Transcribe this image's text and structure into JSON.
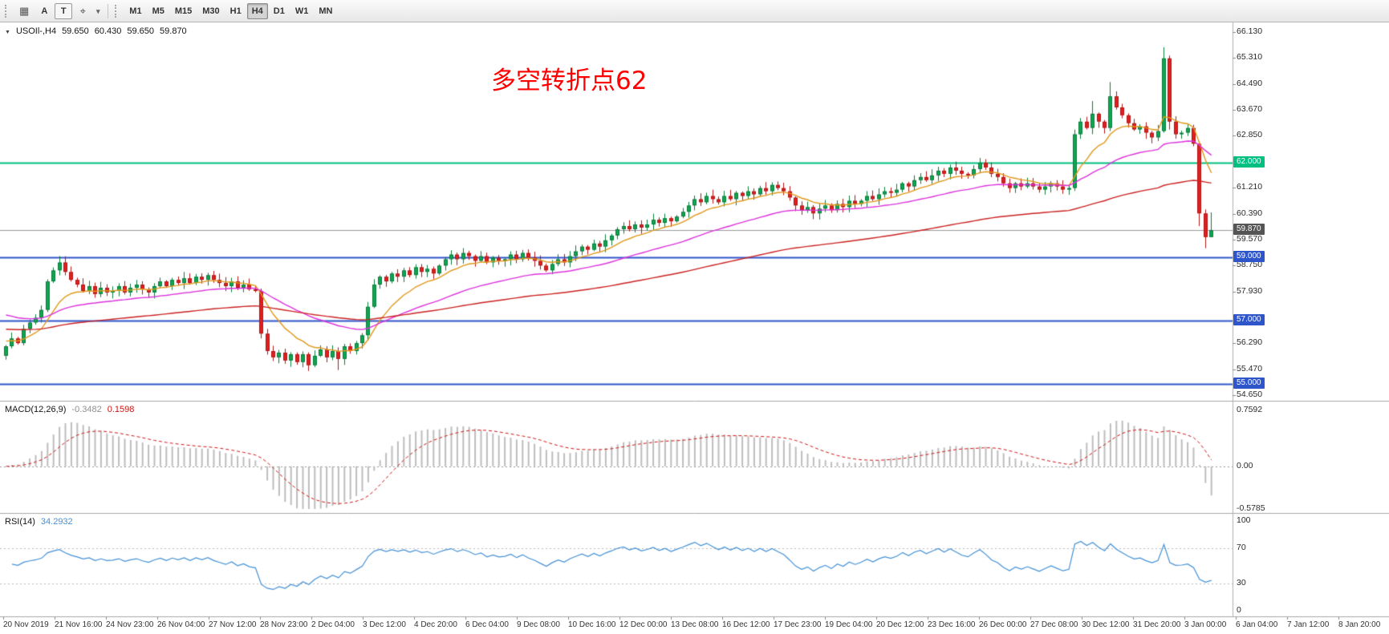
{
  "toolbar": {
    "grid_glyph": "▦",
    "caret_glyph": "▾",
    "tools": [
      {
        "name": "annotation-tool",
        "label": "A"
      },
      {
        "name": "text-tool",
        "label": "T"
      },
      {
        "name": "crosshair-tool",
        "glyph": "⌖"
      }
    ],
    "timeframes": [
      {
        "label": "M1"
      },
      {
        "label": "M5"
      },
      {
        "label": "M15"
      },
      {
        "label": "M30"
      },
      {
        "label": "H1"
      },
      {
        "label": "H4",
        "active": true
      },
      {
        "label": "D1"
      },
      {
        "label": "W1"
      },
      {
        "label": "MN"
      }
    ]
  },
  "chart": {
    "marker_glyph": "▼",
    "symbol_label": "USOIl-,H4",
    "ohlc_display": {
      "open": "59.650",
      "high": "60.430",
      "low": "59.650",
      "close": "59.870"
    },
    "annotation": {
      "text": "多空转折点62",
      "color": "#ff0000"
    },
    "colors": {
      "bull": "#0fa651",
      "bull_border": "#0a7c3c",
      "bear": "#e02020",
      "bear_border": "#b21616",
      "current_price_line": "#9a9a9a"
    }
  },
  "chart_data": {
    "type": "candlestick",
    "symbol": "USOIL",
    "timeframe": "H4",
    "title": "USOIl-,H4",
    "ylim": [
      54.48,
      66.41
    ],
    "price_ticks": [
      66.13,
      65.31,
      64.49,
      63.67,
      62.85,
      61.21,
      60.39,
      59.57,
      58.75,
      57.93,
      56.29,
      55.47,
      54.65
    ],
    "hlines": [
      {
        "price": 62.0,
        "label": "62.000",
        "color": "#00bf80"
      },
      {
        "price": 59.0,
        "label": "59.000",
        "color": "#2f55cb"
      },
      {
        "price": 57.0,
        "label": "57.000",
        "color": "#2f55cb"
      },
      {
        "price": 55.0,
        "label": "55.000",
        "color": "#2f55cb"
      }
    ],
    "current_price": {
      "value": 59.87,
      "label": "59.870",
      "tag_color": "#555555"
    },
    "closes": [
      56.2,
      56.45,
      56.3,
      56.75,
      56.95,
      57.1,
      57.35,
      58.25,
      58.6,
      58.85,
      58.55,
      58.3,
      58.15,
      57.95,
      58.1,
      57.85,
      58.05,
      57.9,
      57.95,
      58.1,
      57.9,
      58.05,
      58.15,
      58.0,
      57.9,
      58.1,
      58.25,
      58.1,
      58.3,
      58.2,
      58.35,
      58.2,
      58.4,
      58.3,
      58.45,
      58.3,
      58.2,
      58.1,
      58.25,
      58.05,
      58.15,
      58.0,
      57.95,
      56.6,
      56.05,
      55.85,
      56.0,
      55.75,
      55.95,
      55.7,
      55.95,
      55.6,
      55.9,
      56.1,
      55.85,
      56.05,
      55.8,
      56.2,
      56.05,
      56.3,
      56.55,
      57.45,
      58.15,
      58.4,
      58.25,
      58.5,
      58.4,
      58.6,
      58.45,
      58.7,
      58.55,
      58.65,
      58.5,
      58.75,
      58.95,
      59.1,
      58.95,
      59.15,
      59.05,
      58.9,
      59.05,
      58.85,
      59.0,
      58.9,
      58.95,
      59.1,
      58.95,
      59.15,
      59.0,
      58.9,
      58.75,
      58.6,
      58.8,
      58.95,
      58.85,
      59.05,
      59.2,
      59.35,
      59.25,
      59.45,
      59.35,
      59.55,
      59.7,
      59.9,
      60.0,
      59.9,
      60.05,
      59.95,
      60.05,
      60.2,
      60.1,
      60.25,
      60.15,
      60.3,
      60.45,
      60.65,
      60.85,
      60.75,
      60.95,
      60.85,
      60.75,
      60.95,
      60.85,
      61.05,
      60.95,
      61.1,
      61.0,
      61.2,
      61.1,
      61.3,
      61.2,
      61.1,
      60.9,
      60.65,
      60.5,
      60.6,
      60.4,
      60.55,
      60.65,
      60.5,
      60.7,
      60.6,
      60.8,
      60.7,
      60.8,
      60.95,
      60.85,
      61.0,
      61.1,
      61.05,
      61.15,
      61.35,
      61.25,
      61.45,
      61.55,
      61.45,
      61.6,
      61.75,
      61.65,
      61.85,
      61.75,
      61.65,
      61.6,
      61.8,
      62.0,
      61.85,
      61.65,
      61.55,
      61.35,
      61.2,
      61.35,
      61.25,
      61.35,
      61.25,
      61.15,
      61.25,
      61.35,
      61.25,
      61.15,
      61.2,
      62.9,
      63.3,
      63.1,
      63.55,
      63.3,
      63.1,
      64.1,
      63.75,
      63.5,
      63.25,
      63.05,
      63.15,
      62.95,
      62.8,
      63.0,
      65.3,
      63.3,
      62.9,
      62.95,
      63.1,
      62.6,
      60.4,
      59.65,
      59.87
    ],
    "overrides": {
      "0": {
        "o": 55.9
      },
      "9": {
        "h": 59.05
      },
      "43": {
        "l": 56.45
      },
      "51": {
        "l": 55.42
      },
      "56": {
        "l": 55.45
      },
      "61": {
        "h": 57.6
      },
      "164": {
        "h": 62.15
      },
      "180": {
        "h": 63.05
      },
      "183": {
        "h": 63.95
      },
      "186": {
        "h": 64.55
      },
      "195": {
        "h": 65.65,
        "l": 62.95
      },
      "196": {
        "l": 63.05
      },
      "200": {
        "h": 63.2
      },
      "201": {
        "l": 60.0
      },
      "202": {
        "l": 59.3
      },
      "203": {
        "h": 60.43,
        "l": 59.65
      }
    },
    "moving_averages": [
      {
        "period": 10,
        "color": "#e0991c",
        "seed": 56.4
      },
      {
        "period": 34,
        "color": "#dd33dd",
        "seed": 57.25
      },
      {
        "period": 100,
        "color": "#cc2222",
        "seed": 56.75
      }
    ],
    "macd": {
      "name": "MACD(12,26,9)",
      "main_value": "-0.3482",
      "signal_value": "0.1598",
      "fast": 12,
      "slow": 26,
      "signal": 9,
      "axis_values": [
        0.7592,
        0,
        -0.5785
      ],
      "axis_labels": [
        "0.7592",
        "0.00",
        "-0.5785"
      ],
      "hist_color": "#bdbdbd",
      "signal_color": "#d01616"
    },
    "rsi": {
      "name": "RSI(14)",
      "value": "34.2932",
      "period": 14,
      "levels": [
        70,
        30
      ],
      "axis_values": [
        100,
        70,
        30,
        0
      ],
      "axis_labels": [
        "100",
        "70",
        "30",
        "0"
      ],
      "color": "#4491d6"
    },
    "time_labels": [
      "20 Nov 2019",
      "21 Nov 16:00",
      "24 Nov 23:00",
      "26 Nov 04:00",
      "27 Nov 12:00",
      "28 Nov 23:00",
      "2 Dec 04:00",
      "3 Dec 12:00",
      "4 Dec 20:00",
      "6 Dec 04:00",
      "9 Dec 08:00",
      "10 Dec 16:00",
      "12 Dec 00:00",
      "13 Dec 08:00",
      "16 Dec 12:00",
      "17 Dec 23:00",
      "19 Dec 04:00",
      "20 Dec 12:00",
      "23 Dec 16:00",
      "26 Dec 00:00",
      "27 Dec 08:00",
      "30 Dec 12:00",
      "31 Dec 20:00",
      "3 Jan 00:00",
      "6 Jan 04:00",
      "7 Jan 12:00",
      "8 Jan 20:00"
    ]
  }
}
